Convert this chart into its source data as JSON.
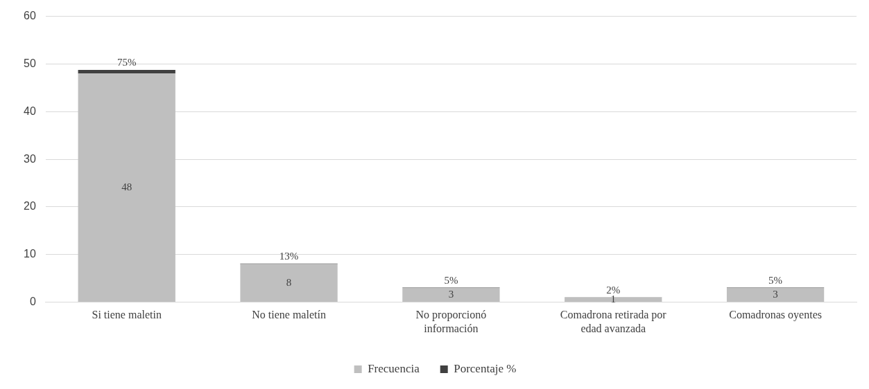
{
  "chart_data": {
    "type": "bar",
    "stacked": true,
    "categories": [
      "Si tiene maletin",
      "No tiene maletín",
      "No proporcionó información",
      "Comadrona retirada por edad avanzada",
      "Comadronas oyentes"
    ],
    "series": [
      {
        "name": "Frecuencia",
        "color": "#bfbfbf",
        "values": [
          48,
          8,
          3,
          1,
          3
        ],
        "value_labels": [
          "48",
          "8",
          "3",
          "1",
          "3"
        ]
      },
      {
        "name": "Porcentaje %",
        "color": "#404040",
        "values": [
          0.75,
          0.13,
          0.05,
          0.02,
          0.05
        ],
        "value_labels": [
          "75%",
          "13%",
          "5%",
          "2%",
          "5%"
        ]
      }
    ],
    "ylim": [
      0,
      60
    ],
    "yticks": [
      0,
      10,
      20,
      30,
      40,
      50,
      60
    ],
    "grid": "y",
    "legend": "bottom"
  }
}
